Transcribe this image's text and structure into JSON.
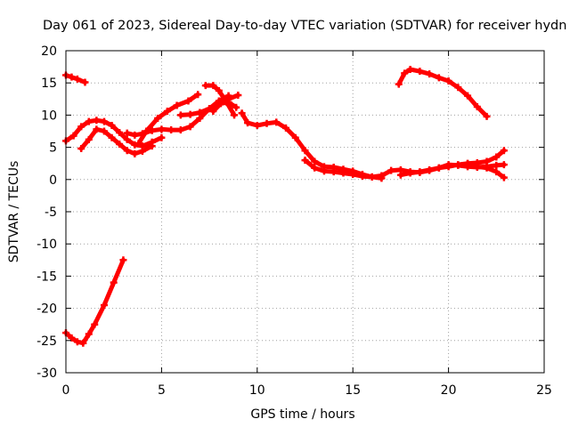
{
  "chart_data": {
    "type": "line",
    "title": "Day 061 of 2023, Sidereal Day-to-day VTEC variation (SDTVAR) for receiver hydn",
    "xlabel": "GPS time / hours",
    "ylabel": "SDTVAR / TECUs",
    "xlim": [
      0,
      25
    ],
    "ylim": [
      -30,
      20
    ],
    "xticks": [
      0,
      5,
      10,
      15,
      20,
      25
    ],
    "yticks": [
      -30,
      -25,
      -20,
      -15,
      -10,
      -5,
      0,
      5,
      10,
      15,
      20
    ],
    "grid": true,
    "legend": "none",
    "series_color": "#ff0000",
    "series": [
      {
        "name": "track-1",
        "x": [
          0.0,
          0.3,
          0.6,
          1.0
        ],
        "y": [
          16.2,
          15.9,
          15.6,
          15.1
        ]
      },
      {
        "name": "track-2",
        "x": [
          0.0,
          0.3,
          0.6,
          0.9,
          1.2,
          1.5,
          2.0,
          2.5,
          3.0
        ],
        "y": [
          -23.8,
          -24.6,
          -25.2,
          -25.4,
          -24.0,
          -22.5,
          -19.5,
          -16.0,
          -12.5
        ]
      },
      {
        "name": "track-3",
        "x": [
          0.0,
          0.4,
          0.8,
          1.2,
          1.6,
          2.0,
          2.4,
          2.8,
          3.2,
          3.6,
          4.0,
          4.5,
          5.0
        ],
        "y": [
          6.0,
          6.8,
          8.2,
          9.0,
          9.2,
          9.0,
          8.4,
          7.3,
          6.2,
          5.4,
          5.2,
          5.8,
          6.5
        ]
      },
      {
        "name": "track-4",
        "x": [
          0.8,
          1.2,
          1.6,
          2.0,
          2.4,
          2.8,
          3.2,
          3.6,
          4.0,
          4.5
        ],
        "y": [
          4.8,
          6.2,
          7.8,
          7.5,
          6.5,
          5.5,
          4.5,
          4.0,
          4.4,
          5.2
        ]
      },
      {
        "name": "track-5",
        "x": [
          3.2,
          3.6,
          4.0,
          4.5,
          5.0,
          5.5,
          6.0,
          6.5,
          7.0,
          7.5,
          8.0,
          8.5
        ],
        "y": [
          7.2,
          6.9,
          7.1,
          7.6,
          7.8,
          7.7,
          7.7,
          8.2,
          9.5,
          11.0,
          12.2,
          13.0
        ]
      },
      {
        "name": "track-6",
        "x": [
          3.8,
          4.2,
          4.8,
          5.3,
          5.8,
          6.4,
          6.9
        ],
        "y": [
          5.6,
          7.5,
          9.5,
          10.6,
          11.5,
          12.2,
          13.2
        ]
      },
      {
        "name": "track-7",
        "x": [
          6.0,
          6.5,
          7.0,
          7.5,
          8.0,
          8.5,
          9.0
        ],
        "y": [
          10.0,
          10.1,
          10.4,
          11.0,
          11.8,
          12.5,
          13.1
        ]
      },
      {
        "name": "track-8",
        "x": [
          7.3,
          7.7,
          8.0,
          8.4,
          8.8
        ],
        "y": [
          14.6,
          14.6,
          13.8,
          12.0,
          10.0
        ]
      },
      {
        "name": "track-9",
        "x": [
          7.7,
          8.1,
          8.5,
          8.9
        ],
        "y": [
          10.6,
          11.8,
          12.0,
          11.2
        ]
      },
      {
        "name": "track-10",
        "x": [
          9.2,
          9.5,
          10.0,
          10.5,
          11.0,
          11.5,
          12.0,
          12.5,
          13.0,
          13.5,
          14.0,
          14.5,
          15.0,
          15.5,
          16.0,
          16.5
        ],
        "y": [
          10.3,
          8.8,
          8.4,
          8.7,
          8.9,
          8.0,
          6.5,
          4.5,
          2.8,
          2.0,
          1.9,
          1.6,
          1.3,
          0.8,
          0.4,
          0.2
        ]
      },
      {
        "name": "track-11",
        "x": [
          12.5,
          13.0,
          13.5,
          14.0,
          14.5,
          15.0,
          15.5,
          16.0,
          16.5,
          17.0,
          17.5,
          18.0,
          18.5,
          19.0,
          19.5,
          20.0,
          20.5,
          21.0,
          21.5,
          22.0,
          22.5,
          22.9
        ],
        "y": [
          3.0,
          1.8,
          1.3,
          1.2,
          1.0,
          0.8,
          0.5,
          0.4,
          0.6,
          1.4,
          1.5,
          1.2,
          1.1,
          1.4,
          1.8,
          2.3,
          2.2,
          2.0,
          1.9,
          2.0,
          2.2,
          2.3
        ]
      },
      {
        "name": "track-12",
        "x": [
          17.5,
          18.0,
          18.5,
          19.0,
          19.5,
          20.0,
          20.5,
          21.0,
          21.5,
          22.0,
          22.5,
          22.9
        ],
        "y": [
          0.7,
          1.0,
          1.2,
          1.5,
          1.8,
          2.0,
          2.3,
          2.5,
          2.6,
          2.8,
          3.5,
          4.5
        ]
      },
      {
        "name": "track-13",
        "x": [
          21.0,
          21.5,
          22.0,
          22.5,
          22.9
        ],
        "y": [
          2.5,
          2.0,
          1.8,
          1.2,
          0.3
        ]
      },
      {
        "name": "track-14",
        "x": [
          17.4,
          17.7,
          18.0,
          18.5,
          19.0,
          19.5,
          20.0,
          20.5,
          21.0,
          21.5,
          22.0
        ],
        "y": [
          14.8,
          16.5,
          17.1,
          16.8,
          16.4,
          15.8,
          15.3,
          14.3,
          13.0,
          11.3,
          9.8
        ]
      }
    ]
  }
}
